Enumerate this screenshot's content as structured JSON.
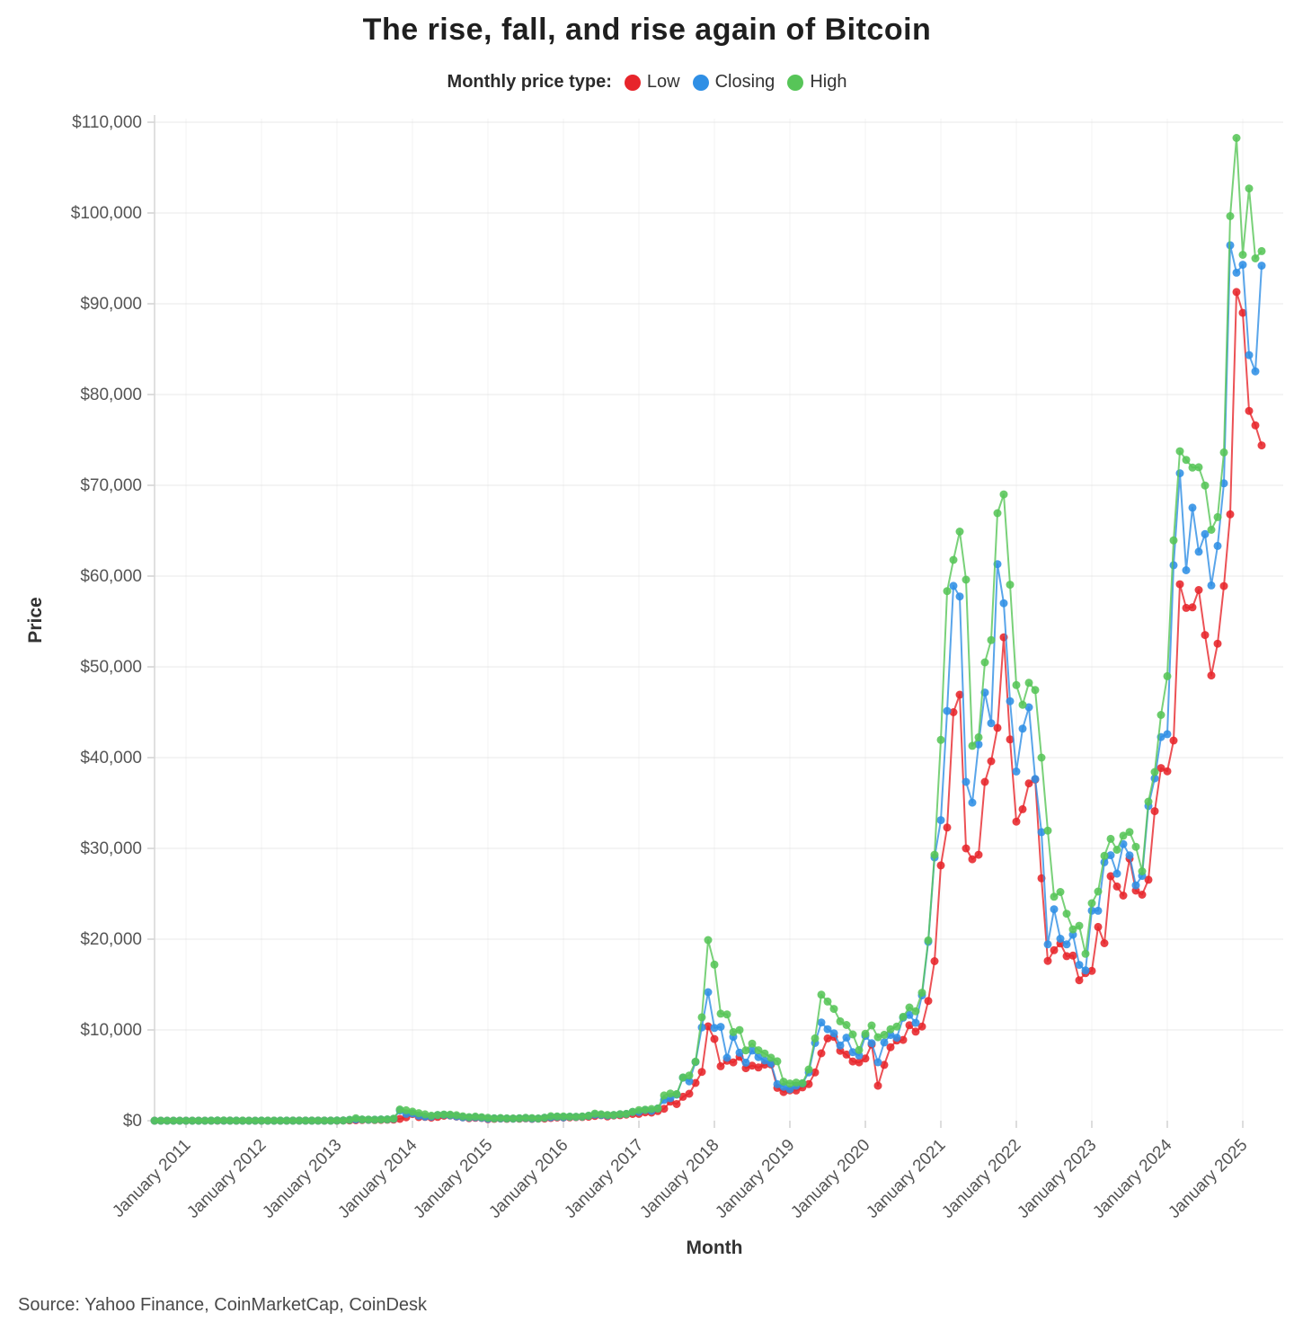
{
  "title": "The rise, fall, and rise again of Bitcoin",
  "legend": {
    "label": "Monthly price type:"
  },
  "axes": {
    "y_title": "Price",
    "x_title": "Month"
  },
  "source": "Source: Yahoo Finance, CoinMarketCap, CoinDesk",
  "chart_data": {
    "type": "line",
    "title": "The rise, fall, and rise again of Bitcoin",
    "xlabel": "Month",
    "ylabel": "Price",
    "x_start_month": "2010-08",
    "x_end_month": "2025-04",
    "points_per_series": 177,
    "ylim": [
      0,
      110000
    ],
    "grid": "horizontal",
    "legend_position": "top",
    "y_ticks": [
      0,
      10000,
      20000,
      30000,
      40000,
      50000,
      60000,
      70000,
      80000,
      90000,
      100000,
      110000
    ],
    "y_tick_labels": [
      "$0",
      "$10,000",
      "$20,000",
      "$30,000",
      "$40,000",
      "$50,000",
      "$60,000",
      "$70,000",
      "$80,000",
      "$90,000",
      "$100,000",
      "$110,000"
    ],
    "x_ticks": [
      {
        "label": "January 2011",
        "month_index": 5
      },
      {
        "label": "January 2012",
        "month_index": 17
      },
      {
        "label": "January 2013",
        "month_index": 29
      },
      {
        "label": "January 2014",
        "month_index": 41
      },
      {
        "label": "January 2015",
        "month_index": 53
      },
      {
        "label": "January 2016",
        "month_index": 65
      },
      {
        "label": "January 2017",
        "month_index": 77
      },
      {
        "label": "January 2018",
        "month_index": 89
      },
      {
        "label": "January 2019",
        "month_index": 101
      },
      {
        "label": "January 2020",
        "month_index": 113
      },
      {
        "label": "January 2021",
        "month_index": 125
      },
      {
        "label": "January 2022",
        "month_index": 137
      },
      {
        "label": "January 2023",
        "month_index": 149
      },
      {
        "label": "January 2024",
        "month_index": 161
      },
      {
        "label": "January 2025",
        "month_index": 173
      }
    ],
    "series": [
      {
        "name": "Low",
        "color": "#e7252b",
        "values": [
          0.05,
          0.06,
          0.06,
          0.19,
          0.21,
          0.29,
          0.45,
          0.7,
          0.78,
          2.9,
          10,
          13,
          8,
          4.8,
          2.3,
          2,
          3,
          4,
          4.3,
          4.5,
          4.8,
          4.9,
          5.2,
          6.5,
          7.5,
          9.8,
          10.2,
          10.3,
          12.4,
          13,
          19.5,
          33,
          50,
          79,
          88,
          65,
          93,
          110,
          123,
          200,
          380,
          730,
          400,
          420,
          340,
          420,
          540,
          560,
          460,
          370,
          275,
          320,
          300,
          170,
          210,
          235,
          210,
          225,
          220,
          255,
          198,
          225,
          235,
          295,
          350,
          350,
          365,
          385,
          410,
          440,
          520,
          600,
          465,
          570,
          600,
          670,
          740,
          750,
          920,
          890,
          1060,
          1320,
          2100,
          1830,
          2630,
          2970,
          4160,
          5380,
          10400,
          9000,
          6000,
          6600,
          6430,
          7040,
          5780,
          6070,
          5860,
          6180,
          6200,
          3620,
          3160,
          3350,
          3330,
          3670,
          4030,
          5320,
          7430,
          9070,
          9230,
          7700,
          7290,
          6520,
          6430,
          6850,
          8400,
          3850,
          6150,
          8100,
          8830,
          8900,
          10510,
          9810,
          10380,
          13200,
          17570,
          28130,
          32300,
          45000,
          46930,
          30000,
          28800,
          29300,
          37330,
          39600,
          43280,
          53260,
          42000,
          32950,
          34320,
          37160,
          37580,
          26700,
          17600,
          18780,
          19520,
          18130,
          18190,
          15480,
          16260,
          16500,
          21350,
          19550,
          26940,
          25800,
          24800,
          28860,
          25350,
          24900,
          26540,
          34100,
          38850,
          38500,
          41880,
          59100,
          56500,
          56550,
          58470,
          53500,
          49050,
          52550,
          58900,
          66800,
          91300,
          89000,
          78200,
          76600,
          74400
        ]
      },
      {
        "name": "Closing",
        "color": "#2f8fe5",
        "values": [
          0.06,
          0.06,
          0.19,
          0.21,
          0.3,
          0.45,
          0.86,
          0.79,
          2.9,
          8.7,
          16,
          13.5,
          8.2,
          5.1,
          3.2,
          3,
          4.3,
          5.5,
          4.9,
          4.9,
          5,
          5.2,
          6.7,
          9.4,
          10.2,
          12.4,
          10.6,
          12.5,
          13.5,
          20.4,
          33.4,
          93,
          139,
          128,
          97,
          106,
          135,
          141,
          204,
          1130,
          750,
          800,
          550,
          450,
          445,
          620,
          640,
          580,
          480,
          380,
          340,
          375,
          320,
          215,
          255,
          245,
          235,
          230,
          262,
          285,
          230,
          235,
          315,
          375,
          430,
          370,
          437,
          415,
          450,
          530,
          670,
          625,
          575,
          610,
          700,
          745,
          965,
          970,
          1180,
          1080,
          1350,
          2290,
          2480,
          2875,
          4735,
          4340,
          6470,
          10280,
          14160,
          10220,
          10340,
          6930,
          9240,
          7500,
          6400,
          7730,
          7010,
          6630,
          6320,
          4020,
          3740,
          3460,
          3850,
          4100,
          5320,
          8560,
          10820,
          10080,
          9630,
          8290,
          9150,
          7550,
          7190,
          9350,
          8540,
          6440,
          8620,
          9450,
          9140,
          11350,
          11650,
          10780,
          13800,
          19700,
          29000,
          33110,
          45140,
          58920,
          57750,
          37330,
          35040,
          41460,
          47170,
          43790,
          61320,
          57010,
          46220,
          38480,
          43190,
          45540,
          37640,
          31790,
          19430,
          23300,
          20050,
          19430,
          20490,
          17170,
          16550,
          23140,
          23130,
          28480,
          29250,
          27220,
          30480,
          29230,
          25930,
          26970,
          34670,
          37710,
          42270,
          42580,
          61200,
          71330,
          60640,
          67530,
          62680,
          64620,
          58970,
          63330,
          70220,
          96450,
          93430,
          94300,
          84350,
          82550,
          94200
        ]
      },
      {
        "name": "High",
        "color": "#57c558",
        "values": [
          0.09,
          0.07,
          0.2,
          0.5,
          0.3,
          0.5,
          1.1,
          0.95,
          3.1,
          9,
          31.9,
          17.5,
          14,
          8.9,
          5.2,
          3.5,
          4.8,
          7.2,
          6,
          5.4,
          5.6,
          5.3,
          6.8,
          9.5,
          13.5,
          12.5,
          12.8,
          12.6,
          13.8,
          20.6,
          33.5,
          95,
          266,
          140,
          130,
          110,
          135,
          147,
          230,
          1240,
          1150,
          1000,
          830,
          700,
          550,
          630,
          680,
          660,
          600,
          490,
          400,
          460,
          385,
          320,
          260,
          300,
          260,
          248,
          268,
          318,
          288,
          248,
          335,
          500,
          470,
          465,
          450,
          440,
          470,
          550,
          780,
          705,
          630,
          630,
          720,
          755,
          980,
          1170,
          1220,
          1290,
          1350,
          2780,
          3000,
          2930,
          4765,
          4980,
          6500,
          11400,
          19900,
          17200,
          11790,
          11700,
          9760,
          9990,
          7750,
          8500,
          7760,
          7410,
          6940,
          6540,
          4300,
          4100,
          4200,
          4140,
          5640,
          9070,
          13880,
          13130,
          12320,
          10950,
          10540,
          9500,
          7780,
          9570,
          10500,
          9200,
          9470,
          10070,
          10380,
          11450,
          12480,
          12060,
          14100,
          19860,
          29300,
          41950,
          58350,
          61780,
          64900,
          59600,
          41300,
          42240,
          50500,
          52950,
          66930,
          69000,
          59050,
          47990,
          45820,
          48240,
          47450,
          40000,
          31960,
          24670,
          25200,
          22800,
          21080,
          21480,
          18390,
          23960,
          25250,
          29180,
          31050,
          29850,
          31400,
          31800,
          30180,
          27480,
          35150,
          38420,
          44700,
          48970,
          63930,
          73750,
          72800,
          71950,
          71990,
          69980,
          65100,
          66500,
          73620,
          99650,
          108270,
          95400,
          102700,
          95000,
          95800
        ]
      }
    ]
  }
}
